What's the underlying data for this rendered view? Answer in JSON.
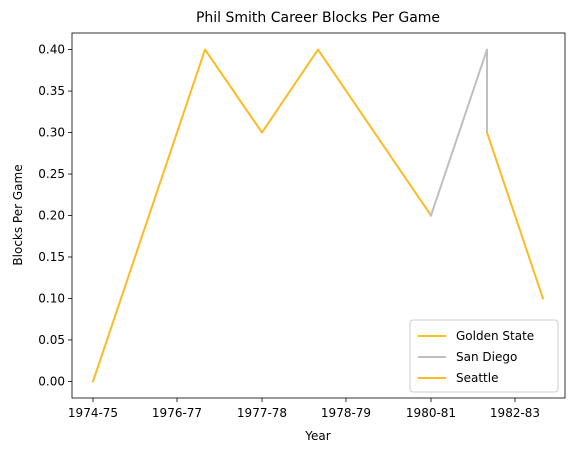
{
  "chart_data": {
    "type": "line",
    "title": "Phil Smith  Career Blocks Per Game",
    "xlabel": "Year",
    "ylabel": "Blocks Per Game",
    "x_tick_labels": [
      "1974-75",
      "1976-77",
      "1977-78",
      "1978-79",
      "1980-81",
      "1982-83"
    ],
    "y_ticks": [
      0.0,
      0.05,
      0.1,
      0.15,
      0.2,
      0.25,
      0.3,
      0.35,
      0.4
    ],
    "y_tick_labels": [
      "0.00",
      "0.05",
      "0.10",
      "0.15",
      "0.20",
      "0.25",
      "0.30",
      "0.35",
      "0.40"
    ],
    "ylim": [
      -0.02,
      0.42
    ],
    "grid": false,
    "legend_position": "lower-right",
    "series": [
      {
        "name": "Golden State",
        "color": "#fbbc22",
        "points": [
          {
            "x": "1974-75",
            "y": 0.0
          },
          {
            "x": "1975-76",
            "y": 0.4
          },
          {
            "x": "1976-77",
            "y": 0.3
          },
          {
            "x": "1977-78",
            "y": 0.4
          },
          {
            "x": "1979-80",
            "y": 0.2
          }
        ]
      },
      {
        "name": "San Diego",
        "color": "#bfbfbf",
        "points": [
          {
            "x": "1979-80",
            "y": 0.2
          },
          {
            "x": "1980-81",
            "y": 0.4
          },
          {
            "x": "1980-81",
            "y": 0.3
          }
        ]
      },
      {
        "name": "Seattle",
        "color": "#fbbc22",
        "points": [
          {
            "x": "1980-81",
            "y": 0.3
          },
          {
            "x": "1981-82",
            "y": 0.1
          }
        ]
      }
    ]
  }
}
